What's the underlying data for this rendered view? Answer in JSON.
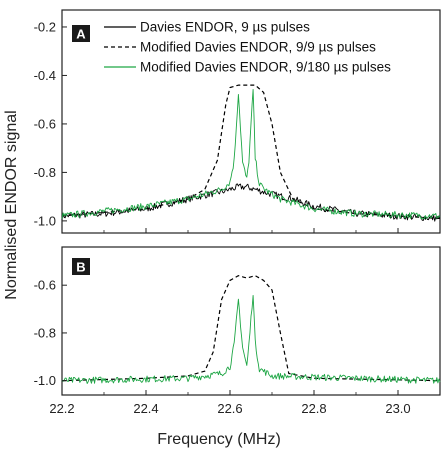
{
  "chart_data": {
    "type": "line",
    "xlabel": "Frequency (MHz)",
    "ylabel": "Normalised ENDOR signal",
    "xlim": [
      22.2,
      23.1
    ],
    "x_ticks": [
      "22.2",
      "22.4",
      "22.6",
      "22.8",
      "23.0"
    ],
    "grid": false,
    "legend_placement": "top-right",
    "colors": {
      "solid": "#000000",
      "dashed": "#000000",
      "green": "#1ea645"
    },
    "panels": [
      {
        "label": "A",
        "ylim": [
          -1.05,
          -0.13
        ],
        "y_ticks": [
          "-0.2",
          "-0.4",
          "-0.6",
          "-0.8",
          "-1.0"
        ],
        "series": [
          {
            "name": "Davies ENDOR, 9 µs pulses",
            "style": "solid",
            "color": "#000000",
            "x": [
              22.2,
              22.3,
              22.4,
              22.5,
              22.55,
              22.58,
              22.6,
              22.62,
              22.64,
              22.66,
              22.68,
              22.7,
              22.75,
              22.8,
              22.9,
              23.0,
              23.1
            ],
            "y": [
              -0.98,
              -0.97,
              -0.95,
              -0.91,
              -0.89,
              -0.88,
              -0.87,
              -0.86,
              -0.86,
              -0.87,
              -0.88,
              -0.89,
              -0.91,
              -0.94,
              -0.97,
              -0.98,
              -0.99
            ]
          },
          {
            "name": "Modified Davies ENDOR, 9/9 µs pulses",
            "style": "dashed",
            "color": "#000000",
            "x": [
              22.2,
              22.4,
              22.5,
              22.54,
              22.57,
              22.59,
              22.6,
              22.62,
              22.64,
              22.66,
              22.68,
              22.7,
              22.72,
              22.75,
              22.8,
              22.9,
              23.1
            ],
            "y": [
              -0.98,
              -0.95,
              -0.91,
              -0.87,
              -0.75,
              -0.52,
              -0.45,
              -0.44,
              -0.44,
              -0.44,
              -0.47,
              -0.6,
              -0.8,
              -0.91,
              -0.95,
              -0.97,
              -0.99
            ]
          },
          {
            "name": "Modified Davies ENDOR, 9/180 µs pulses",
            "style": "solid",
            "color": "#1ea645",
            "x": [
              22.2,
              22.4,
              22.5,
              22.58,
              22.6,
              22.61,
              22.62,
              22.63,
              22.64,
              22.645,
              22.655,
              22.66,
              22.67,
              22.69,
              22.72,
              22.8,
              22.9,
              23.1
            ],
            "y": [
              -0.98,
              -0.94,
              -0.91,
              -0.87,
              -0.84,
              -0.75,
              -0.47,
              -0.76,
              -0.83,
              -0.75,
              -0.46,
              -0.74,
              -0.85,
              -0.88,
              -0.91,
              -0.95,
              -0.97,
              -0.98
            ]
          }
        ]
      },
      {
        "label": "B",
        "ylim": [
          -1.06,
          -0.44
        ],
        "y_ticks": [
          "-0.6",
          "-0.8",
          "-1.0"
        ],
        "series": [
          {
            "name": "Modified Davies ENDOR, 9/9 µs pulses",
            "style": "dashed",
            "color": "#000000",
            "x": [
              22.2,
              22.4,
              22.5,
              22.54,
              22.56,
              22.58,
              22.6,
              22.62,
              22.64,
              22.66,
              22.68,
              22.7,
              22.72,
              22.74,
              22.8,
              23.1
            ],
            "y": [
              -1.0,
              -0.99,
              -0.98,
              -0.96,
              -0.88,
              -0.66,
              -0.58,
              -0.56,
              -0.57,
              -0.56,
              -0.58,
              -0.62,
              -0.8,
              -0.97,
              -0.99,
              -1.0
            ]
          },
          {
            "name": "Modified Davies ENDOR, 9/180 µs pulses",
            "style": "solid",
            "color": "#1ea645",
            "x": [
              22.2,
              22.5,
              22.58,
              22.6,
              22.61,
              22.62,
              22.63,
              22.64,
              22.645,
              22.655,
              22.66,
              22.67,
              22.7,
              23.1
            ],
            "y": [
              -1.0,
              -0.99,
              -0.97,
              -0.94,
              -0.85,
              -0.66,
              -0.86,
              -0.94,
              -0.85,
              -0.63,
              -0.84,
              -0.95,
              -0.98,
              -1.0
            ]
          }
        ]
      }
    ]
  }
}
